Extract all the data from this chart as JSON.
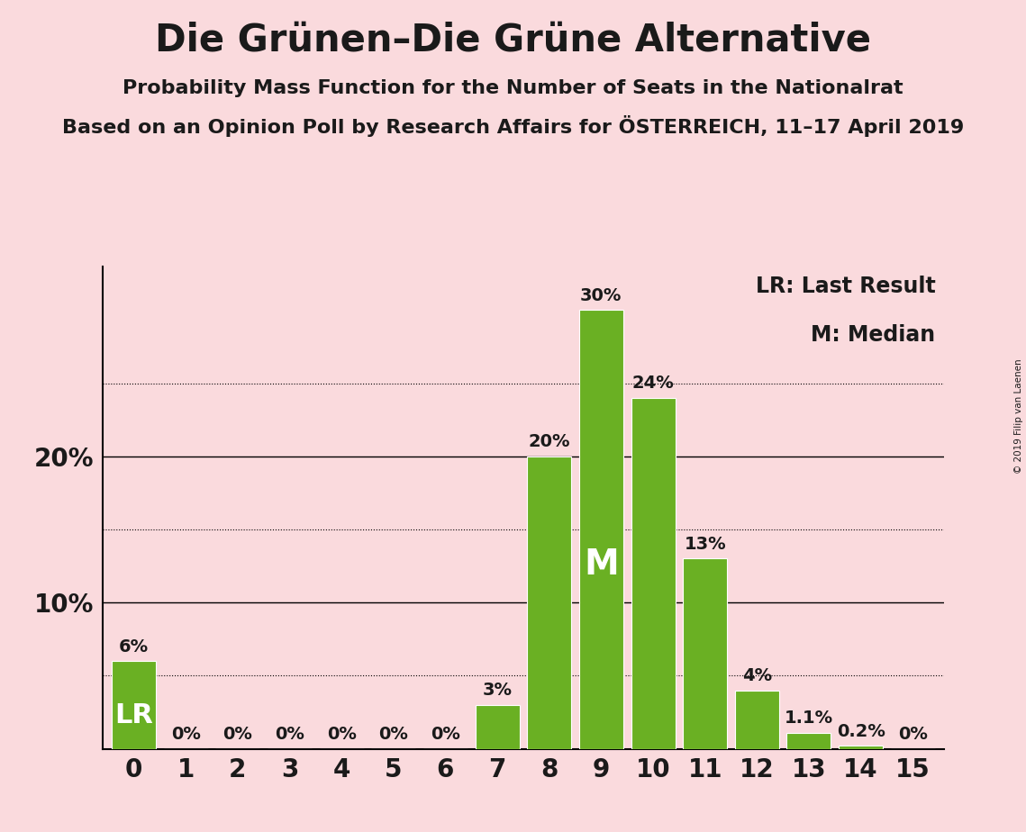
{
  "title": "Die Grünen–Die Grüne Alternative",
  "subtitle1": "Probability Mass Function for the Number of Seats in the Nationalrat",
  "subtitle2": "Based on an Opinion Poll by Research Affairs for ÖSTERREICH, 11–17 April 2019",
  "copyright": "© 2019 Filip van Laenen",
  "legend_lr": "LR: Last Result",
  "legend_m": "M: Median",
  "categories": [
    0,
    1,
    2,
    3,
    4,
    5,
    6,
    7,
    8,
    9,
    10,
    11,
    12,
    13,
    14,
    15
  ],
  "values": [
    6,
    0,
    0,
    0,
    0,
    0,
    0,
    3,
    20,
    30,
    24,
    13,
    4,
    1.1,
    0.2,
    0
  ],
  "bar_color": "#6ab023",
  "background_color": "#fadadd",
  "text_color": "#1a1a1a",
  "lr_bar": 0,
  "median_bar": 9,
  "ylim": [
    0,
    33
  ],
  "major_gridlines": [
    10,
    20
  ],
  "dotted_gridlines": [
    5,
    15,
    25
  ],
  "title_fontsize": 30,
  "subtitle_fontsize": 16,
  "bar_label_fontsize": 14,
  "axis_tick_fontsize": 20,
  "legend_fontsize": 17,
  "lr_fontsize": 22,
  "m_fontsize": 28
}
